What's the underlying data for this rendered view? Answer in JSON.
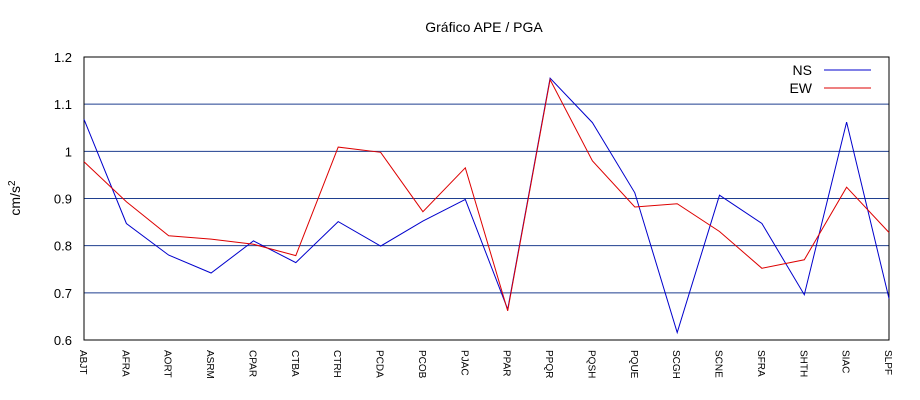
{
  "chart_data": {
    "type": "line",
    "title": "Gráfico  APE / PGA",
    "xlabel": "",
    "ylabel": "cm/s",
    "ylabel_superscript": "2",
    "ylim": [
      0.6,
      1.2
    ],
    "yticks": [
      "0.6",
      "0.7",
      "0.8",
      "0.9",
      "1",
      "1.1",
      "1.2"
    ],
    "grid": "horizontal",
    "legend_position": "top-right",
    "categories": [
      "ABJT",
      "AFRA",
      "AORT",
      "ASRM",
      "CPAR",
      "CTBA",
      "CTRH",
      "PCDA",
      "PCOB",
      "PJAC",
      "PPAR",
      "PPQR",
      "PQSH",
      "PQUE",
      "SCGH",
      "SCNE",
      "SFRA",
      "SHTH",
      "SIAC",
      "SLPF"
    ],
    "series": [
      {
        "name": "NS",
        "color": "#0000cc",
        "values": [
          1.068,
          0.847,
          0.78,
          0.742,
          0.81,
          0.764,
          0.851,
          0.799,
          0.852,
          0.898,
          0.665,
          1.155,
          1.061,
          0.912,
          0.616,
          0.907,
          0.847,
          0.696,
          1.062,
          0.688
        ]
      },
      {
        "name": "EW",
        "color": "#dd0000",
        "values": [
          0.978,
          0.893,
          0.821,
          0.814,
          0.803,
          0.779,
          1.009,
          0.998,
          0.872,
          0.965,
          0.662,
          1.152,
          0.98,
          0.882,
          0.889,
          0.83,
          0.752,
          0.77,
          0.924,
          0.828
        ]
      }
    ]
  },
  "colors": {
    "grid": "#1f3f8f",
    "frame": "#000000"
  }
}
